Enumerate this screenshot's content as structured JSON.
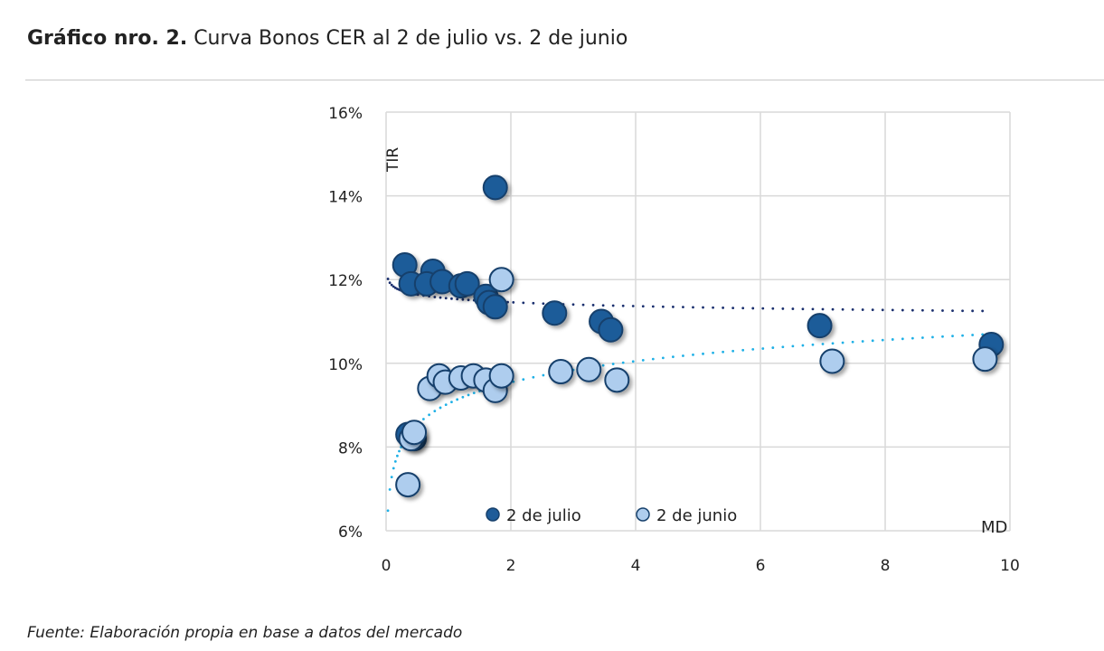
{
  "header": {
    "title_bold": "Gráfico nro. 2.",
    "title_rest": "Curva Bonos CER al 2 de julio vs. 2 de junio"
  },
  "footer": {
    "source": "Fuente: Elaboración propia en base a datos del mercado"
  },
  "colors": {
    "july": "#1f5c99",
    "june": "#aecdee",
    "outline": "#16406c",
    "trend_july": "#1a2f6e",
    "trend_june": "#1fb0e6",
    "grid": "#d9d9d9"
  },
  "chart_data": {
    "type": "scatter",
    "title": "Curva Bonos CER al 2 de julio vs. 2 de junio",
    "xlabel": "MD",
    "ylabel": "TIR",
    "xlim": [
      0,
      10
    ],
    "ylim": [
      6,
      16
    ],
    "xticks": [
      0,
      2,
      4,
      6,
      8,
      10
    ],
    "yticks": [
      6,
      8,
      10,
      12,
      14,
      16
    ],
    "ytick_labels": [
      "6%",
      "8%",
      "10%",
      "12%",
      "14%",
      "16%"
    ],
    "grid": true,
    "legend": "bottom-center",
    "series": [
      {
        "name": "2 de julio",
        "trendline": "logarithmic",
        "points": [
          [
            1.75,
            14.2
          ],
          [
            0.3,
            12.35
          ],
          [
            0.4,
            11.9
          ],
          [
            0.75,
            12.2
          ],
          [
            0.65,
            11.9
          ],
          [
            0.9,
            11.95
          ],
          [
            1.2,
            11.85
          ],
          [
            1.3,
            11.9
          ],
          [
            1.6,
            11.6
          ],
          [
            1.65,
            11.45
          ],
          [
            1.75,
            11.35
          ],
          [
            2.7,
            11.2
          ],
          [
            3.45,
            11.0
          ],
          [
            3.6,
            10.8
          ],
          [
            6.95,
            10.9
          ],
          [
            9.7,
            10.45
          ],
          [
            0.35,
            8.3
          ],
          [
            0.45,
            8.2
          ]
        ]
      },
      {
        "name": "2 de junio",
        "trendline": "logarithmic",
        "points": [
          [
            1.85,
            12.0
          ],
          [
            0.35,
            7.1
          ],
          [
            0.4,
            8.2
          ],
          [
            0.45,
            8.35
          ],
          [
            0.7,
            9.4
          ],
          [
            0.85,
            9.7
          ],
          [
            0.95,
            9.55
          ],
          [
            1.2,
            9.65
          ],
          [
            1.4,
            9.7
          ],
          [
            1.6,
            9.6
          ],
          [
            1.75,
            9.35
          ],
          [
            1.85,
            9.7
          ],
          [
            2.8,
            9.8
          ],
          [
            3.25,
            9.85
          ],
          [
            3.7,
            9.6
          ],
          [
            7.15,
            10.05
          ],
          [
            9.6,
            10.1
          ]
        ]
      }
    ]
  }
}
